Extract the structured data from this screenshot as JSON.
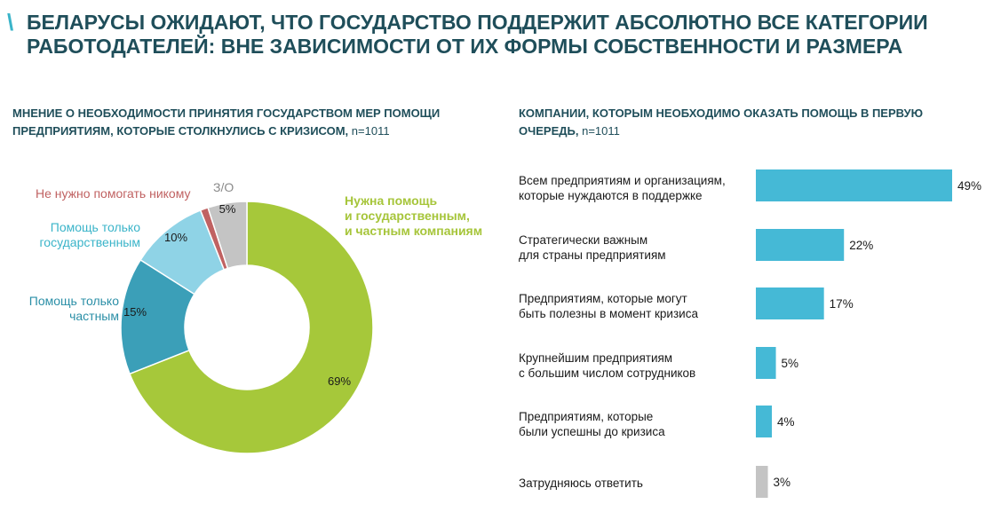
{
  "header": {
    "slash": "\\",
    "title": "БЕЛАРУСЫ ОЖИДАЮТ, ЧТО ГОСУДАРСТВО ПОДДЕРЖИТ АБСОЛЮТНО ВСЕ КАТЕГОРИИ РАБОТОДАТЕЛЕЙ: ВНЕ ЗАВИСИМОСТИ ОТ ИХ ФОРМЫ СОБСТВЕННОСТИ И РАЗМЕРА"
  },
  "chart_data": [
    {
      "type": "pie",
      "title": "МНЕНИЕ О НЕОБХОДИМОСТИ ПРИНЯТИЯ ГОСУДАРСТВОМ МЕР ПОМОЩИ ПРЕДПРИЯТИЯМ, КОТОРЫЕ СТОЛКНУЛИСЬ С КРИЗИСОМ,",
      "sample": "n=1011",
      "donut": true,
      "slices": [
        {
          "label": "Нужна помощь\nи государственным,\nи частным компаниям",
          "value": 69,
          "value_label": "69%",
          "color": "#a6c83a"
        },
        {
          "label": "Помощь только\nчастным",
          "value": 15,
          "value_label": "15%",
          "color": "#3b9fb8"
        },
        {
          "label": "Помощь только\nгосударственным",
          "value": 10,
          "value_label": "10%",
          "color": "#8fd3e6"
        },
        {
          "label": "Не нужно помогать никому",
          "value": 1,
          "value_label": "",
          "color": "#c06262"
        },
        {
          "label": "З/О",
          "value": 5,
          "value_label": "5%",
          "color": "#c4c4c4"
        }
      ]
    },
    {
      "type": "bar",
      "orientation": "horizontal",
      "title": "КОМПАНИИ, КОТОРЫМ НЕОБХОДИМО ОКАЗАТЬ ПОМОЩЬ В ПЕРВУЮ ОЧЕРЕДЬ,",
      "sample": "n=1011",
      "categories": [
        "Всем предприятиям и организациям,\nкоторые нуждаются в поддержке",
        "Стратегически важным\nдля страны предприятиям",
        "Предприятиям, которые могут\nбыть полезны в момент кризиса",
        "Крупнейшим предприятиям\nс большим числом сотрудников",
        "Предприятиям, которые\nбыли успешны до кризиса",
        "Затрудняюсь ответить"
      ],
      "values": [
        49,
        22,
        17,
        5,
        4,
        3
      ],
      "value_labels": [
        "49%",
        "22%",
        "17%",
        "5%",
        "4%",
        "3%"
      ],
      "colors": [
        "#45b9d6",
        "#45b9d6",
        "#45b9d6",
        "#45b9d6",
        "#45b9d6",
        "#c4c4c4"
      ]
    }
  ]
}
